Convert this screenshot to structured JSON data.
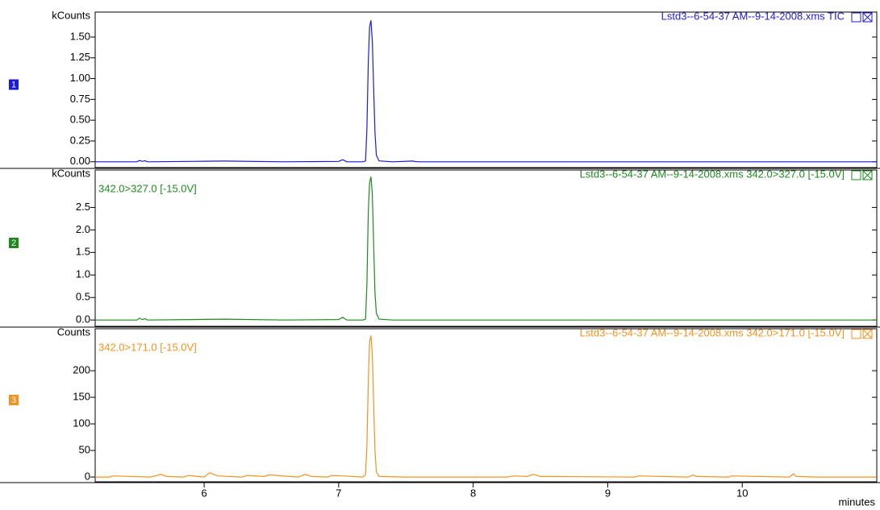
{
  "chart_data": [
    {
      "type": "line",
      "panel_label": "1",
      "title": "Lstd3--6-54-37 AM--9-14-2008.xms TIC",
      "y_label": "kCounts",
      "color": "#1a1ae6",
      "xlim": [
        5.19,
        11.0
      ],
      "ylim": [
        -0.07,
        1.8
      ],
      "yticks": [
        {
          "value": 0,
          "label": "0.00"
        },
        {
          "value": 0.25,
          "label": "0.25"
        },
        {
          "value": 0.5,
          "label": "0.50"
        },
        {
          "value": 0.75,
          "label": "0.75"
        },
        {
          "value": 1,
          "label": "1.00"
        },
        {
          "value": 1.25,
          "label": "1.25"
        },
        {
          "value": 1.5,
          "label": "1.50"
        }
      ],
      "x": [
        5.19,
        5.5,
        5.52,
        5.54,
        5.56,
        5.58,
        5.9,
        6.15,
        6.6,
        7.0,
        7.03,
        7.06,
        7.18,
        7.2,
        7.21,
        7.22,
        7.23,
        7.24,
        7.25,
        7.26,
        7.27,
        7.28,
        7.3,
        7.4,
        7.55,
        7.57,
        7.6,
        8.5,
        9.5,
        10.5,
        11.0
      ],
      "values": [
        0,
        0,
        0.015,
        0.005,
        0.012,
        0,
        0.005,
        0.008,
        0,
        0.005,
        0.025,
        0,
        0,
        0.01,
        0.4,
        1.2,
        1.62,
        1.7,
        1.45,
        0.9,
        0.35,
        0.08,
        0.01,
        0,
        0.008,
        0.003,
        0,
        0,
        0,
        0,
        0
      ]
    },
    {
      "type": "line",
      "panel_label": "2",
      "title": "Lstd3--6-54-37 AM--9-14-2008.xms 342.0>327.0 [-15.0V]",
      "subtitle": "342.0>327.0 [-15.0V]",
      "y_label": "kCounts",
      "color": "#1e8a1e",
      "xlim": [
        5.19,
        11.0
      ],
      "ylim": [
        -0.14,
        3.33
      ],
      "yticks": [
        {
          "value": 0,
          "label": "0.0"
        },
        0.5,
        {
          "value": 1,
          "label": "1.0"
        },
        1.5,
        {
          "value": 2,
          "label": "2.0"
        },
        2.5
      ],
      "x": [
        5.19,
        5.5,
        5.52,
        5.54,
        5.56,
        5.58,
        5.9,
        6.15,
        6.6,
        7.0,
        7.03,
        7.06,
        7.18,
        7.2,
        7.21,
        7.22,
        7.23,
        7.24,
        7.25,
        7.26,
        7.27,
        7.28,
        7.3,
        7.4,
        7.55,
        7.57,
        7.6,
        8.5,
        9.5,
        10.5,
        11.0
      ],
      "values": [
        0,
        0,
        0.04,
        0.01,
        0.03,
        0,
        0.01,
        0.02,
        0,
        0.01,
        0.06,
        0,
        0,
        0.02,
        0.8,
        2.4,
        3.05,
        3.18,
        2.8,
        1.7,
        0.6,
        0.15,
        0.02,
        0,
        0,
        0,
        0,
        0,
        0,
        0,
        0
      ]
    },
    {
      "type": "line",
      "panel_label": "3",
      "title": "Lstd3--6-54-37 AM--9-14-2008.xms 342.0>171.0 [-15.0V]",
      "subtitle": "342.0>171.0 [-15.0V]",
      "y_label": "Counts",
      "x_label": "minutes",
      "color": "#f5921e",
      "xlim": [
        5.19,
        11.0
      ],
      "ylim": [
        -9,
        279
      ],
      "yticks": [
        0,
        50,
        100,
        150,
        200
      ],
      "xticks": [
        6,
        7,
        8,
        9,
        10
      ],
      "x": [
        5.19,
        5.3,
        5.32,
        5.6,
        5.68,
        5.72,
        5.85,
        5.88,
        6.0,
        6.04,
        6.1,
        6.28,
        6.32,
        6.45,
        6.48,
        6.7,
        6.75,
        6.8,
        6.92,
        6.95,
        7.03,
        7.18,
        7.2,
        7.21,
        7.22,
        7.23,
        7.24,
        7.25,
        7.26,
        7.27,
        7.28,
        7.3,
        7.5,
        8.25,
        8.3,
        8.4,
        8.45,
        8.5,
        9.2,
        9.23,
        9.6,
        9.63,
        9.66,
        9.9,
        9.92,
        10.35,
        10.38,
        10.4,
        10.55,
        11.0
      ],
      "values": [
        0,
        0,
        2,
        0,
        5,
        1,
        0,
        3,
        0,
        8,
        2,
        0,
        3,
        1,
        4,
        0,
        5,
        1,
        0,
        3,
        2,
        0,
        5,
        60,
        180,
        255,
        266,
        230,
        140,
        50,
        10,
        1,
        0,
        0,
        2,
        1,
        5,
        1,
        0,
        2,
        0,
        4,
        1,
        0,
        2,
        0,
        6,
        1,
        0,
        0
      ]
    }
  ]
}
